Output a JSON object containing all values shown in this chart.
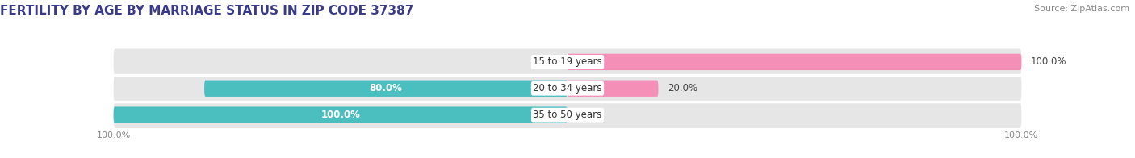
{
  "title": "FERTILITY BY AGE BY MARRIAGE STATUS IN ZIP CODE 37387",
  "source": "Source: ZipAtlas.com",
  "categories": [
    "15 to 19 years",
    "20 to 34 years",
    "35 to 50 years"
  ],
  "married": [
    0.0,
    80.0,
    100.0
  ],
  "unmarried": [
    100.0,
    20.0,
    0.0
  ],
  "married_color": "#4bbfc0",
  "unmarried_color": "#f490b8",
  "row_bg_color": "#e6e6e6",
  "bar_height": 0.62,
  "title_fontsize": 11,
  "source_fontsize": 8,
  "label_fontsize": 8.5,
  "category_fontsize": 8.5,
  "legend_fontsize": 9,
  "axis_label_fontsize": 8,
  "background_color": "#ffffff"
}
